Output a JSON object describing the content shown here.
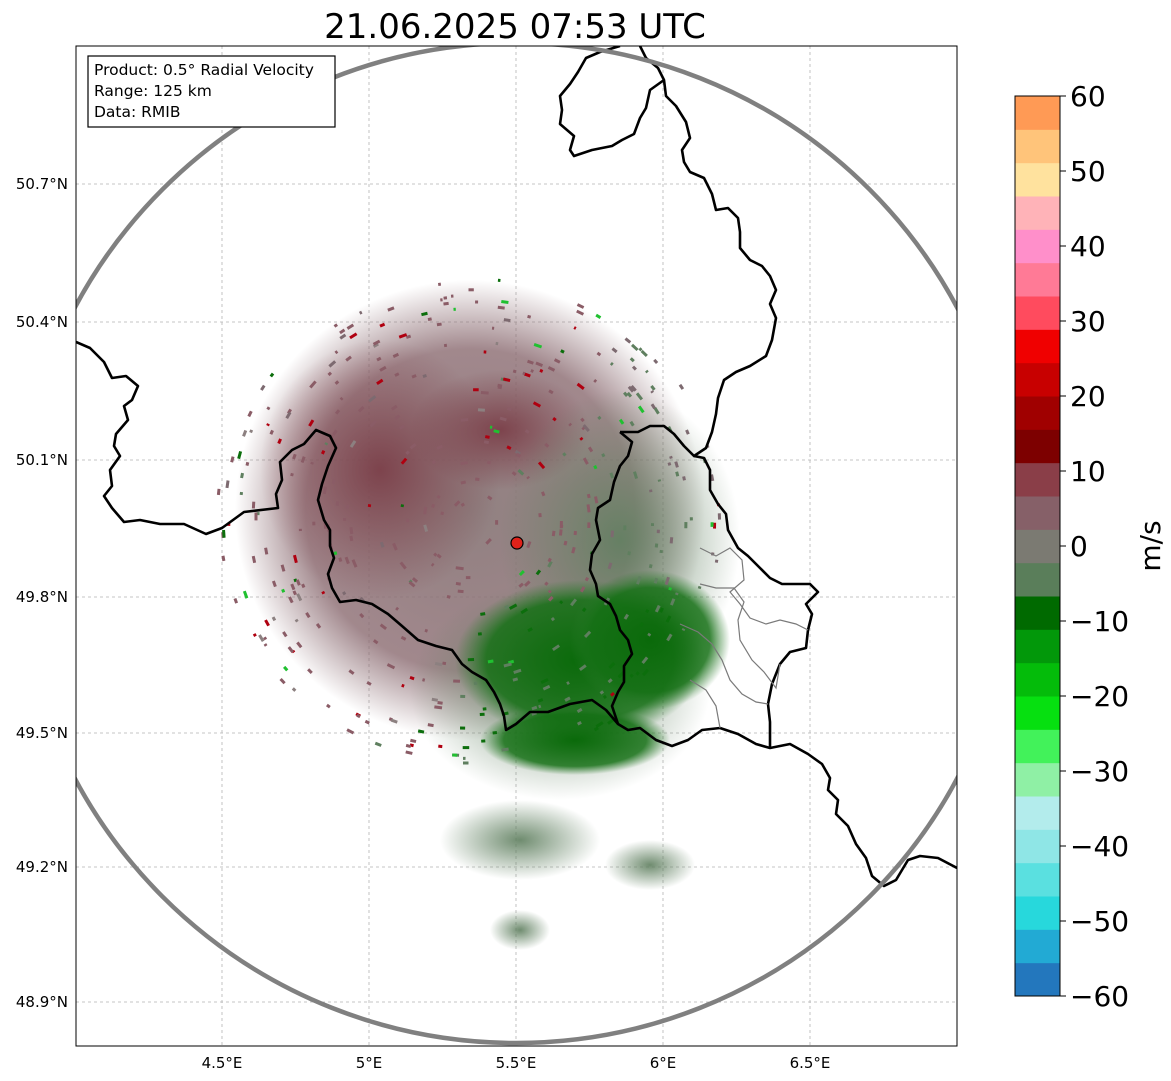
{
  "title": "21.06.2025 07:53 UTC",
  "info_box": {
    "product": "Product: 0.5° Radial Velocity",
    "range": "Range: 125 km",
    "data": "Data: RMIB"
  },
  "map": {
    "lon_ticks": [
      "4.5°E",
      "5°E",
      "5.5°E",
      "6°E",
      "6.5°E"
    ],
    "lat_ticks": [
      "50.7°N",
      "50.4°N",
      "50.1°N",
      "49.8°N",
      "49.5°N",
      "49.2°N",
      "48.9°N"
    ],
    "range_ring_color": "#808080",
    "border_color": "#000000",
    "radar_site_marker": "radar-site-red-dot",
    "radar_site_color": "#e0221a"
  },
  "colorbar": {
    "label": "m/s",
    "ticks": [
      "60",
      "50",
      "40",
      "30",
      "20",
      "10",
      "0",
      "−10",
      "−20",
      "−30",
      "−40",
      "−50",
      "−60"
    ],
    "range": [
      -60,
      60
    ],
    "colors_bottom_to_top": [
      "#2377bd",
      "#22aad4",
      "#27d8dc",
      "#5ae0e0",
      "#8fe6e6",
      "#b3ecec",
      "#8ff0a5",
      "#42f25a",
      "#06e010",
      "#04bc0a",
      "#02980a",
      "#006a00",
      "#5a7e5a",
      "#7b7a72",
      "#866068",
      "#8a3e48",
      "#7d0000",
      "#a00000",
      "#c80000",
      "#f00000",
      "#ff4b5e",
      "#ff7a96",
      "#ff8fca",
      "#ffb3b8",
      "#ffe29e",
      "#ffc47a",
      "#ff9a55"
    ]
  }
}
